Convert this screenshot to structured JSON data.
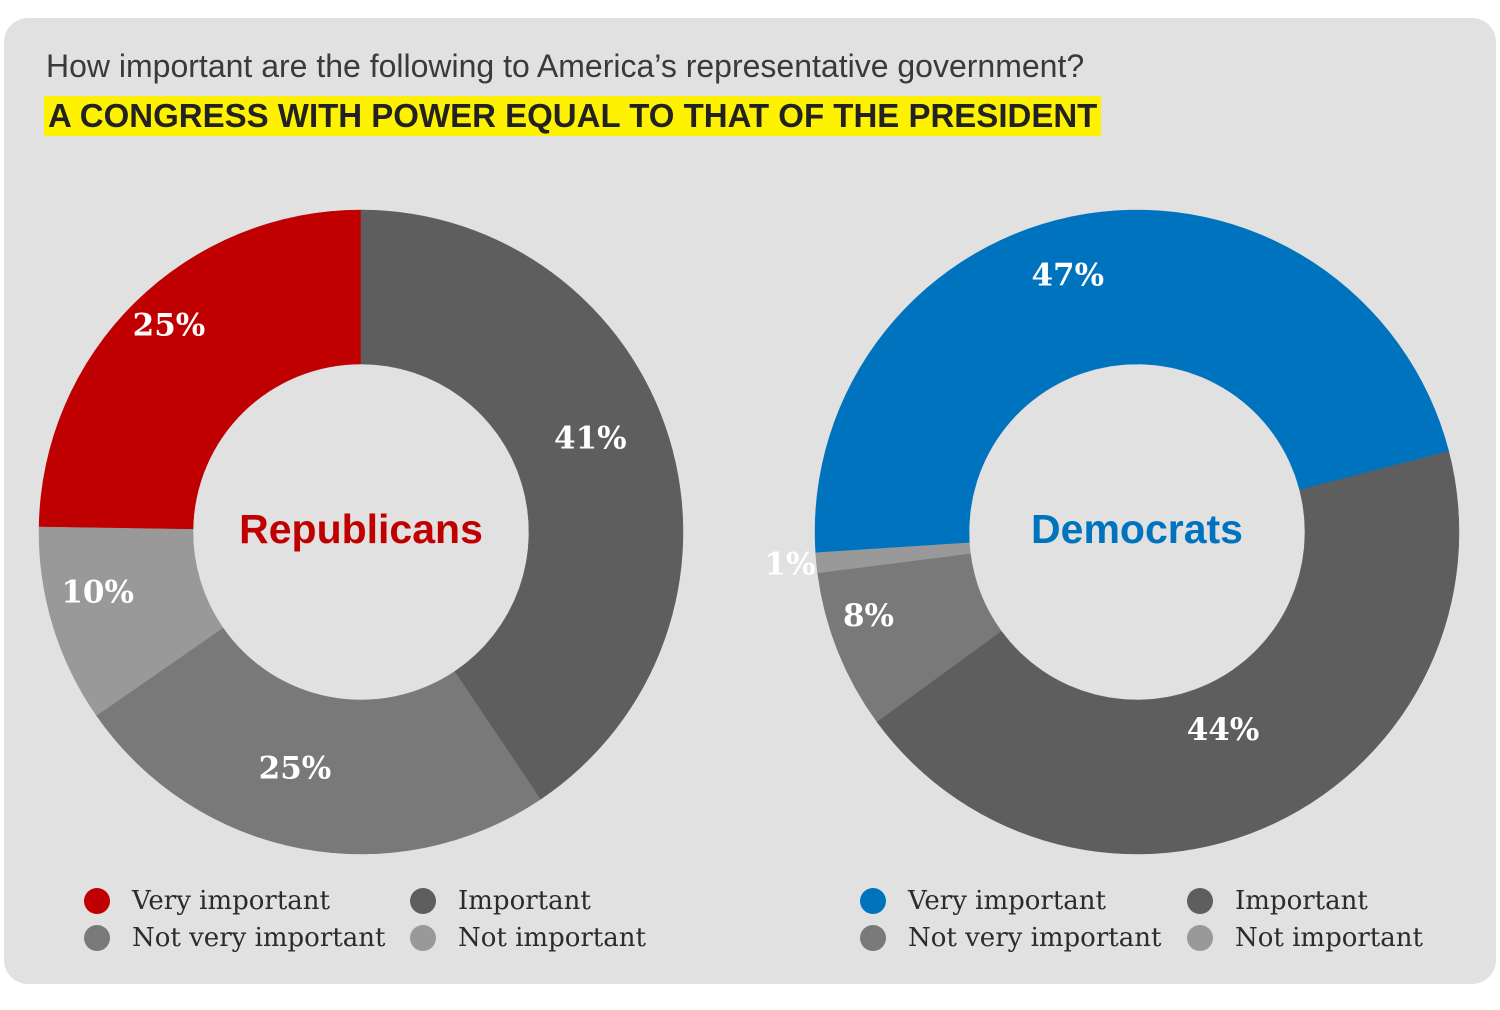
{
  "header": {
    "question": "How important are the following to America’s representative government?",
    "subtitle": "A CONGRESS WITH POWER EQUAL TO THAT OF THE PRESIDENT"
  },
  "colors": {
    "republican": "#c00000",
    "democrat": "#0073bf",
    "important": "#5e5e5e",
    "not_very_important": "#797979",
    "not_important": "#999999",
    "background": "#e1e1e1"
  },
  "chart_data": [
    {
      "type": "pie",
      "name": "Republicans",
      "categories": [
        "Very important",
        "Important",
        "Not very important",
        "Not important"
      ],
      "values": [
        25,
        41,
        25,
        10
      ],
      "labels": [
        "25%",
        "41%",
        "25%",
        "10%"
      ],
      "colors": [
        "#c00000",
        "#5e5e5e",
        "#797979",
        "#999999"
      ],
      "center_color": "#c00000"
    },
    {
      "type": "pie",
      "name": "Democrats",
      "categories": [
        "Very important",
        "Important",
        "Not very important",
        "Not important"
      ],
      "values": [
        47,
        44,
        8,
        1
      ],
      "labels": [
        "47%",
        "44%",
        "8%",
        "1%"
      ],
      "colors": [
        "#0073bf",
        "#5e5e5e",
        "#797979",
        "#999999"
      ],
      "center_color": "#0073bf"
    }
  ]
}
